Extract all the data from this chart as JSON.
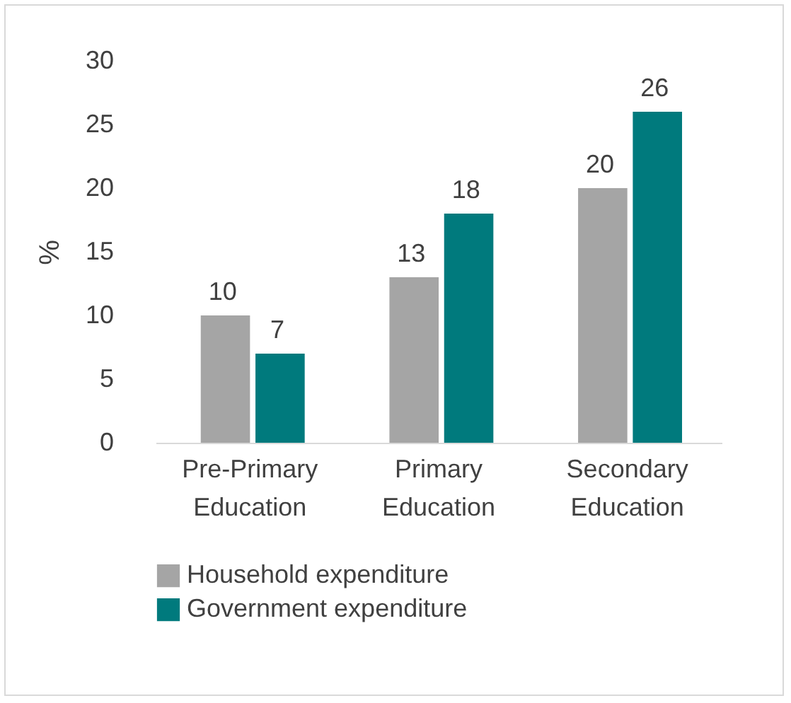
{
  "chart_data": {
    "type": "bar",
    "ylabel": "%",
    "categories": [
      "Pre-Primary Education",
      "Primary Education",
      "Secondary Education"
    ],
    "series": [
      {
        "name": "Household expenditure",
        "color": "#a5a5a5",
        "values": [
          10,
          13,
          20
        ]
      },
      {
        "name": "Government expenditure",
        "color": "#007a7d",
        "values": [
          7,
          18,
          26
        ]
      }
    ],
    "ylim": [
      0,
      30
    ],
    "yticks": [
      0,
      5,
      10,
      15,
      20,
      25,
      30
    ],
    "data_labels": true,
    "legend": "bottom"
  }
}
